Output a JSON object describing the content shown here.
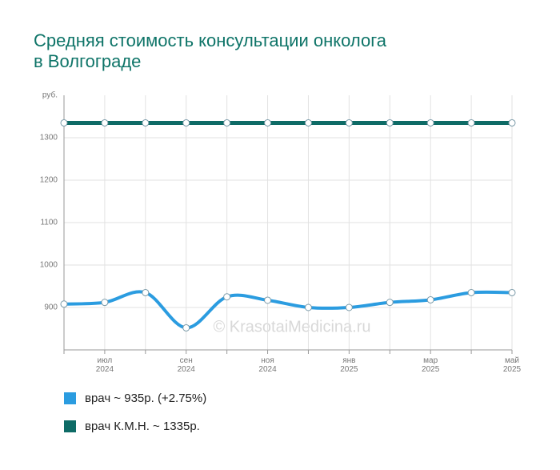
{
  "chart_data": {
    "type": "line",
    "title": "Средняя стоимость консультации онколога в Волгограде",
    "y_label": "руб.",
    "watermark": "© KrasotaiMedicina.ru",
    "categories": [
      null,
      "июл 2024",
      null,
      "сен 2024",
      null,
      "ноя 2024",
      null,
      "янв 2025",
      null,
      "мар 2025",
      null,
      "май 2025"
    ],
    "series": [
      {
        "name": "врач ~ 935р. (+2.75%)",
        "color": "#2b9ce0",
        "values": [
          908,
          912,
          935,
          852,
          925,
          917,
          900,
          900,
          912,
          918,
          935,
          935
        ]
      },
      {
        "name": "врач К.М.Н. ~ 1335р.",
        "color": "#0e6b66",
        "values": [
          1335,
          1335,
          1335,
          1335,
          1335,
          1335,
          1335,
          1335,
          1335,
          1335,
          1335,
          1335
        ]
      }
    ],
    "ylim": [
      800,
      1400
    ],
    "yticks": [
      900,
      1000,
      1100,
      1200,
      1300
    ],
    "grid": true
  }
}
